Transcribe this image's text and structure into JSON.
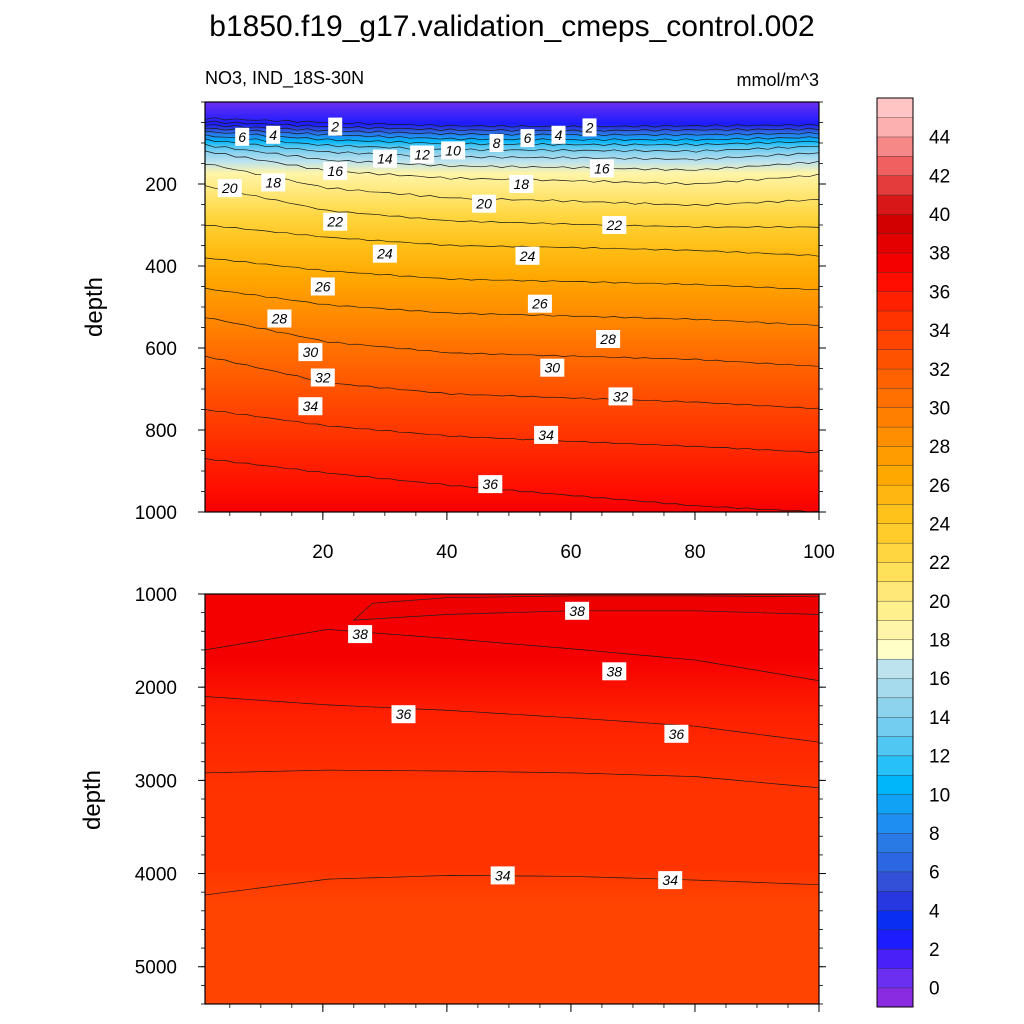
{
  "chart_data": {
    "type": "contour",
    "title": "b1850.f19_g17.validation_cmeps_control.002",
    "variable_label": "NO3, IND_18S-30N",
    "units_label": "mmol/m^3",
    "xlim": [
      1,
      100
    ],
    "x_ticks": [
      "20",
      "40",
      "60",
      "80",
      "100"
    ],
    "upper_panel": {
      "ylabel": "depth",
      "ylim": [
        0,
        1000
      ],
      "y_ticks": [
        "200",
        "400",
        "600",
        "800",
        "1000"
      ],
      "isolines": [
        {
          "level": 2,
          "depths": [
            40,
            50,
            58,
            60,
            58,
            56
          ]
        },
        {
          "level": 4,
          "depths": [
            48,
            60,
            68,
            70,
            68,
            66
          ]
        },
        {
          "level": 6,
          "depths": [
            56,
            70,
            78,
            80,
            80,
            76
          ]
        },
        {
          "level": 8,
          "depths": [
            64,
            80,
            90,
            92,
            92,
            86
          ]
        },
        {
          "level": 10,
          "depths": [
            72,
            92,
            102,
            104,
            104,
            96
          ]
        },
        {
          "level": 12,
          "depths": [
            82,
            106,
            116,
            118,
            120,
            108
          ]
        },
        {
          "level": 14,
          "depths": [
            92,
            122,
            134,
            136,
            140,
            124
          ]
        },
        {
          "level": 16,
          "depths": [
            105,
            142,
            156,
            160,
            166,
            146
          ]
        },
        {
          "level": 18,
          "depths": [
            120,
            168,
            186,
            192,
            200,
            178
          ]
        },
        {
          "level": 20,
          "depths": [
            150,
            210,
            234,
            242,
            252,
            238
          ]
        },
        {
          "level": 22,
          "depths": [
            205,
            265,
            290,
            298,
            305,
            305
          ]
        },
        {
          "level": 24,
          "depths": [
            300,
            330,
            350,
            355,
            362,
            375
          ]
        },
        {
          "level": 26,
          "depths": [
            380,
            412,
            432,
            438,
            445,
            458
          ]
        },
        {
          "level": 28,
          "depths": [
            455,
            495,
            515,
            522,
            530,
            545
          ]
        },
        {
          "level": 30,
          "depths": [
            525,
            585,
            612,
            620,
            628,
            645
          ]
        },
        {
          "level": 32,
          "depths": [
            620,
            685,
            712,
            722,
            732,
            748
          ]
        },
        {
          "level": 34,
          "depths": [
            750,
            790,
            815,
            828,
            840,
            855
          ]
        },
        {
          "level": 36,
          "depths": [
            870,
            905,
            935,
            960,
            985,
            1000
          ]
        }
      ],
      "line_labels": [
        {
          "text": "6",
          "x": 7,
          "y": 85
        },
        {
          "text": "4",
          "x": 12,
          "y": 80
        },
        {
          "text": "2",
          "x": 22,
          "y": 60
        },
        {
          "text": "8",
          "x": 48,
          "y": 100
        },
        {
          "text": "6",
          "x": 53,
          "y": 88
        },
        {
          "text": "4",
          "x": 58,
          "y": 80
        },
        {
          "text": "2",
          "x": 63,
          "y": 62
        },
        {
          "text": "16",
          "x": 22,
          "y": 168
        },
        {
          "text": "14",
          "x": 30,
          "y": 138
        },
        {
          "text": "12",
          "x": 36,
          "y": 128
        },
        {
          "text": "10",
          "x": 41,
          "y": 118
        },
        {
          "text": "16",
          "x": 65,
          "y": 162
        },
        {
          "text": "20",
          "x": 5,
          "y": 210
        },
        {
          "text": "18",
          "x": 12,
          "y": 196
        },
        {
          "text": "18",
          "x": 52,
          "y": 200
        },
        {
          "text": "20",
          "x": 46,
          "y": 248
        },
        {
          "text": "22",
          "x": 22,
          "y": 292
        },
        {
          "text": "22",
          "x": 67,
          "y": 300
        },
        {
          "text": "24",
          "x": 30,
          "y": 370
        },
        {
          "text": "24",
          "x": 53,
          "y": 375
        },
        {
          "text": "26",
          "x": 20,
          "y": 450
        },
        {
          "text": "26",
          "x": 55,
          "y": 492
        },
        {
          "text": "28",
          "x": 13,
          "y": 528
        },
        {
          "text": "28",
          "x": 66,
          "y": 578
        },
        {
          "text": "30",
          "x": 18,
          "y": 610
        },
        {
          "text": "30",
          "x": 57,
          "y": 648
        },
        {
          "text": "32",
          "x": 20,
          "y": 672
        },
        {
          "text": "32",
          "x": 68,
          "y": 718
        },
        {
          "text": "34",
          "x": 18,
          "y": 742
        },
        {
          "text": "34",
          "x": 56,
          "y": 812
        },
        {
          "text": "36",
          "x": 47,
          "y": 932
        }
      ]
    },
    "lower_panel": {
      "ylabel": "depth",
      "ylim": [
        1000,
        5400
      ],
      "y_ticks": [
        "1000",
        "2000",
        "3000",
        "4000",
        "5000"
      ],
      "isolines": [
        {
          "level": 38,
          "depths": [
            1000,
            1000,
            1000,
            1000,
            1000,
            1000
          ]
        },
        {
          "level": 38,
          "depths": [
            1600,
            1380,
            1480,
            1590,
            1710,
            1930
          ]
        },
        {
          "level": 36,
          "depths": [
            2100,
            2190,
            2250,
            2330,
            2420,
            2590
          ]
        },
        {
          "level": 36,
          "depths": [
            2920,
            2890,
            2900,
            2920,
            2960,
            3080
          ]
        },
        {
          "level": 34,
          "depths": [
            4230,
            4060,
            4020,
            4030,
            4070,
            4120
          ]
        }
      ],
      "inner_max_contour": [
        [
          25,
          1280
        ],
        [
          40,
          1220
        ],
        [
          60,
          1180
        ],
        [
          80,
          1180
        ],
        [
          100,
          1220
        ],
        [
          100,
          1030
        ],
        [
          80,
          1020
        ],
        [
          60,
          1020
        ],
        [
          40,
          1040
        ],
        [
          28,
          1100
        ]
      ],
      "line_labels": [
        {
          "text": "38",
          "x": 26,
          "y": 1430
        },
        {
          "text": "38",
          "x": 61,
          "y": 1180
        },
        {
          "text": "38",
          "x": 67,
          "y": 1830
        },
        {
          "text": "36",
          "x": 33,
          "y": 2290
        },
        {
          "text": "36",
          "x": 77,
          "y": 2500
        },
        {
          "text": "34",
          "x": 49,
          "y": 4020
        },
        {
          "text": "34",
          "x": 76,
          "y": 4070
        }
      ]
    },
    "colorbar": {
      "tick_labels": [
        "0",
        "2",
        "4",
        "6",
        "8",
        "10",
        "12",
        "14",
        "16",
        "18",
        "20",
        "22",
        "24",
        "26",
        "28",
        "30",
        "32",
        "34",
        "36",
        "38",
        "40",
        "42",
        "44"
      ],
      "level_bounds": [
        -1,
        46
      ],
      "colors": [
        "#8a2be2",
        "#6a2ff0",
        "#4a20f8",
        "#1c1cff",
        "#0a2ff2",
        "#2838e0",
        "#3350d8",
        "#2d66e3",
        "#2a7ae6",
        "#1f8ef2",
        "#10a2f5",
        "#00b6fa",
        "#28c0f8",
        "#50c6f2",
        "#72cdf0",
        "#8ed3ee",
        "#a6dbee",
        "#bde3ee",
        "#ffffc8",
        "#fff5a8",
        "#fff08e",
        "#ffe878",
        "#ffe058",
        "#ffd640",
        "#ffcc2c",
        "#ffc21a",
        "#ffb610",
        "#ffa800",
        "#ff9c00",
        "#ff8e00",
        "#ff8000",
        "#ff7000",
        "#ff6200",
        "#ff5200",
        "#ff4300",
        "#ff3300",
        "#ff2000",
        "#ff0e00",
        "#f50000",
        "#e40000",
        "#d20000",
        "#d81818",
        "#e43c3c",
        "#f06060",
        "#f78888",
        "#fcb0b0",
        "#ffc4c4"
      ]
    }
  }
}
